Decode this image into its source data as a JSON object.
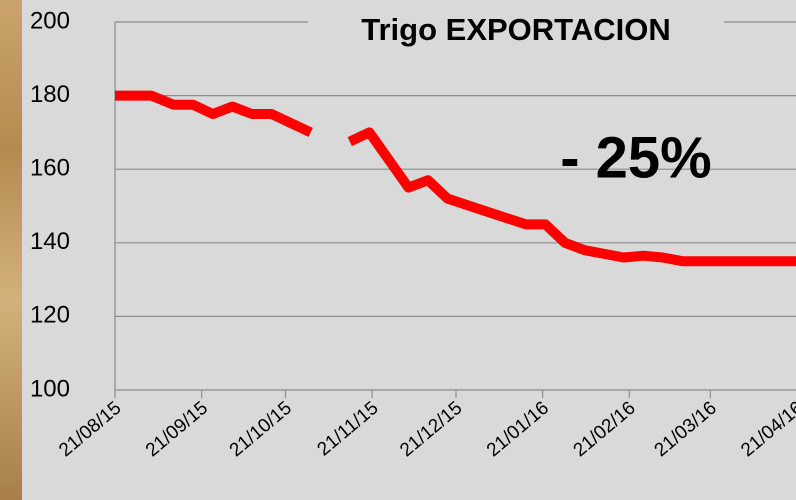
{
  "chart_data": {
    "type": "line",
    "title": "Trigo EXPORTACION",
    "annotation": "- 25%",
    "x": [
      "21/08/15",
      "03/09/15",
      "11/09/15",
      "18/09/15",
      "25/09/15",
      "02/10/15",
      "09/10/15",
      "16/10/15",
      "30/10/15",
      "06/11/15",
      "13/11/15",
      "20/11/15",
      "04/12/15",
      "11/12/15",
      "18/12/15",
      "30/12/15",
      "15/01/16",
      "22/01/16",
      "29/01/16",
      "05/02/16",
      "19/02/16",
      "26/02/16",
      "04/03/16",
      "11/03/16",
      "18/03/16",
      "25/03/16",
      "01/04/16",
      "08/04/16",
      "15/04/16",
      "22/04/16"
    ],
    "values": [
      180,
      180,
      177.5,
      177.5,
      175,
      177,
      175,
      175,
      170,
      null,
      167.5,
      170,
      155,
      157,
      152,
      149,
      145,
      145,
      140,
      138,
      136,
      136.5,
      136,
      135,
      135,
      135,
      135,
      135,
      135,
      135
    ],
    "color": "#ff0000",
    "xlim": [
      "21/08/15",
      "21/04/16"
    ],
    "xticks": [
      "21/08/15",
      "21/09/15",
      "21/10/15",
      "21/11/15",
      "21/12/15",
      "21/01/16",
      "21/02/16",
      "21/03/16",
      "21/04/16"
    ],
    "ylim": [
      100,
      200
    ],
    "yticks": [
      100,
      120,
      140,
      160,
      180,
      200
    ],
    "grid": true
  }
}
